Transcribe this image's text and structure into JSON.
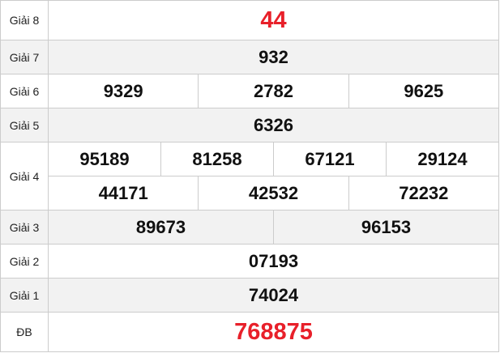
{
  "accent_color": "#e8202a",
  "prizes": [
    {
      "label": "Giải 8",
      "numbers": [
        [
          "44"
        ]
      ]
    },
    {
      "label": "Giải 7",
      "numbers": [
        [
          "932"
        ]
      ]
    },
    {
      "label": "Giải 6",
      "numbers": [
        [
          "9329",
          "2782",
          "9625"
        ]
      ]
    },
    {
      "label": "Giải 5",
      "numbers": [
        [
          "6326"
        ]
      ]
    },
    {
      "label": "Giải 4",
      "numbers": [
        [
          "95189",
          "81258",
          "67121",
          "29124"
        ],
        [
          "44171",
          "42532",
          "72232"
        ]
      ]
    },
    {
      "label": "Giải 3",
      "numbers": [
        [
          "89673",
          "96153"
        ]
      ]
    },
    {
      "label": "Giải 2",
      "numbers": [
        [
          "07193"
        ]
      ]
    },
    {
      "label": "Giải 1",
      "numbers": [
        [
          "74024"
        ]
      ]
    },
    {
      "label": "ĐB",
      "numbers": [
        [
          "768875"
        ]
      ]
    }
  ]
}
